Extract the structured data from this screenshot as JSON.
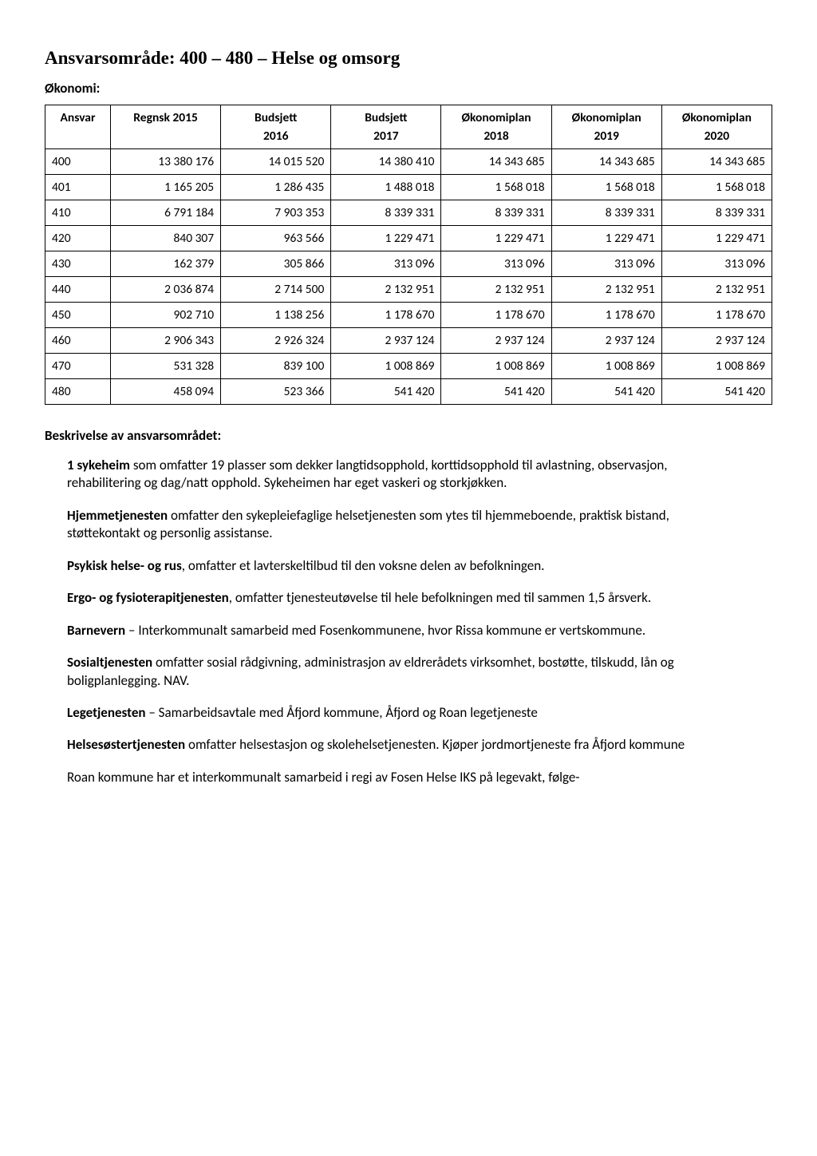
{
  "title": "Ansvarsområde: 400 – 480 – Helse og omsorg",
  "subheading": "Økonomi:",
  "table": {
    "headers": [
      "Ansvar",
      "Regnsk 2015",
      "Budsjett",
      "Budsjett",
      "Økonomiplan",
      "Økonomiplan",
      "Økonomiplan"
    ],
    "subheaders": [
      "",
      "",
      "2016",
      "2017",
      "2018",
      "2019",
      "2020"
    ],
    "rows": [
      [
        "400",
        "13 380 176",
        "14 015 520",
        "14 380 410",
        "14 343 685",
        "14 343 685",
        "14 343 685"
      ],
      [
        "401",
        "1 165 205",
        "1 286 435",
        "1 488 018",
        "1 568 018",
        "1 568 018",
        "1 568 018"
      ],
      [
        "410",
        "6 791 184",
        "7 903 353",
        "8 339 331",
        "8 339 331",
        "8 339 331",
        "8 339 331"
      ],
      [
        "420",
        "840 307",
        "963 566",
        "1 229 471",
        "1 229 471",
        "1 229 471",
        "1 229 471"
      ],
      [
        "430",
        "162 379",
        "305 866",
        "313 096",
        "313 096",
        "313 096",
        "313 096"
      ],
      [
        "440",
        "2 036 874",
        "2 714 500",
        "2 132 951",
        "2 132 951",
        "2 132 951",
        "2 132 951"
      ],
      [
        "450",
        "902 710",
        "1 138 256",
        "1 178 670",
        "1 178 670",
        "1 178 670",
        "1 178 670"
      ],
      [
        "460",
        "2 906 343",
        "2 926 324",
        "2 937 124",
        "2 937 124",
        "2 937 124",
        "2 937 124"
      ],
      [
        "470",
        "531 328",
        "839 100",
        "1 008 869",
        "1 008 869",
        "1 008 869",
        "1 008 869"
      ],
      [
        "480",
        "458 094",
        "523 366",
        "541 420",
        "541 420",
        "541 420",
        "541 420"
      ]
    ]
  },
  "sectionLabel": "Beskrivelse av ansvarsområdet:",
  "descriptions": [
    {
      "bold": "1 sykeheim",
      "rest": " som omfatter 19 plasser som dekker langtidsopphold, korttidsopphold til avlastning, observasjon, rehabilitering og dag/natt opphold. Sykeheimen har eget vaskeri og storkjøkken."
    },
    {
      "bold": "Hjemmetjenesten",
      "rest": " omfatter den sykepleiefaglige helsetjenesten som ytes til hjemmeboende, praktisk bistand, støttekontakt og personlig assistanse."
    },
    {
      "bold": "Psykisk helse- og rus",
      "rest": ", omfatter et lavterskeltilbud til den voksne delen av befolkningen."
    },
    {
      "bold": "Ergo- og fysioterapitjenesten",
      "rest": ", omfatter tjenesteutøvelse til hele befolkningen med til sammen 1,5 årsverk."
    },
    {
      "bold": "Barnevern",
      "rest": " – Interkommunalt samarbeid med Fosenkommunene, hvor Rissa kommune er vertskommune."
    },
    {
      "bold": "Sosialtjenesten",
      "rest": " omfatter sosial rådgivning, administrasjon av eldrerådets virksomhet, bostøtte, tilskudd, lån og boligplanlegging. NAV."
    },
    {
      "bold": "Legetjenesten",
      "rest": " – Samarbeidsavtale med Åfjord kommune, Åfjord og Roan legetjeneste"
    },
    {
      "bold": "Helsesøstertjenesten",
      "rest": " omfatter helsestasjon og skolehelsetjenesten. Kjøper jordmortjeneste fra Åfjord kommune"
    }
  ],
  "trailing": "Roan kommune har et interkommunalt samarbeid i regi av Fosen Helse IKS på legevakt, følge-"
}
